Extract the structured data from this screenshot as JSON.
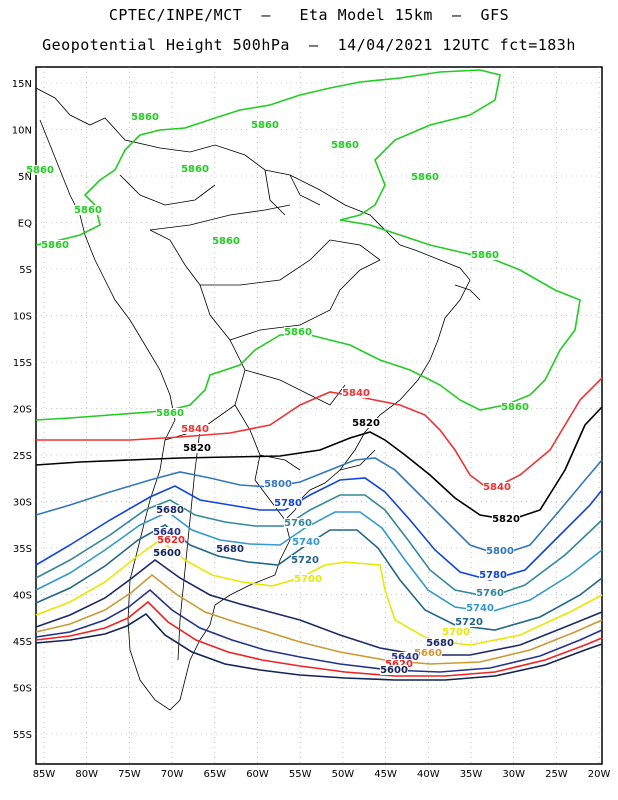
{
  "header": {
    "line1": "CPTEC/INPE/MCT  –   Eta Model 15km  –  GFS",
    "line2": "Geopotential Height 500hPa  –  14/04/2021 12UTC fct=183h"
  },
  "axes": {
    "lat_labels": [
      "15N",
      "10N",
      "5N",
      "EQ",
      "5S",
      "10S",
      "15S",
      "20S",
      "25S",
      "30S",
      "35S",
      "40S",
      "45S",
      "50S",
      "55S"
    ],
    "lon_labels": [
      "85W",
      "80W",
      "75W",
      "70W",
      "65W",
      "60W",
      "55W",
      "50W",
      "45W",
      "40W",
      "35W",
      "30W",
      "25W",
      "20W"
    ]
  },
  "contours": [
    {
      "value": "5860",
      "color": "#22cc22"
    },
    {
      "value": "5840",
      "color": "#ee3333"
    },
    {
      "value": "5820",
      "color": "#000000"
    },
    {
      "value": "5800",
      "color": "#3377bb"
    },
    {
      "value": "5780",
      "color": "#1144dd"
    },
    {
      "value": "5760",
      "color": "#338899"
    },
    {
      "value": "5740",
      "color": "#3399cc"
    },
    {
      "value": "5720",
      "color": "#226688"
    },
    {
      "value": "5700",
      "color": "#e8e800"
    },
    {
      "value": "5680",
      "color": "#1a2a66"
    },
    {
      "value": "5660",
      "color": "#cc9933"
    },
    {
      "value": "5640",
      "color": "#223388"
    },
    {
      "value": "5620",
      "color": "#ee2222"
    },
    {
      "value": "5600",
      "color": "#112255"
    }
  ]
}
